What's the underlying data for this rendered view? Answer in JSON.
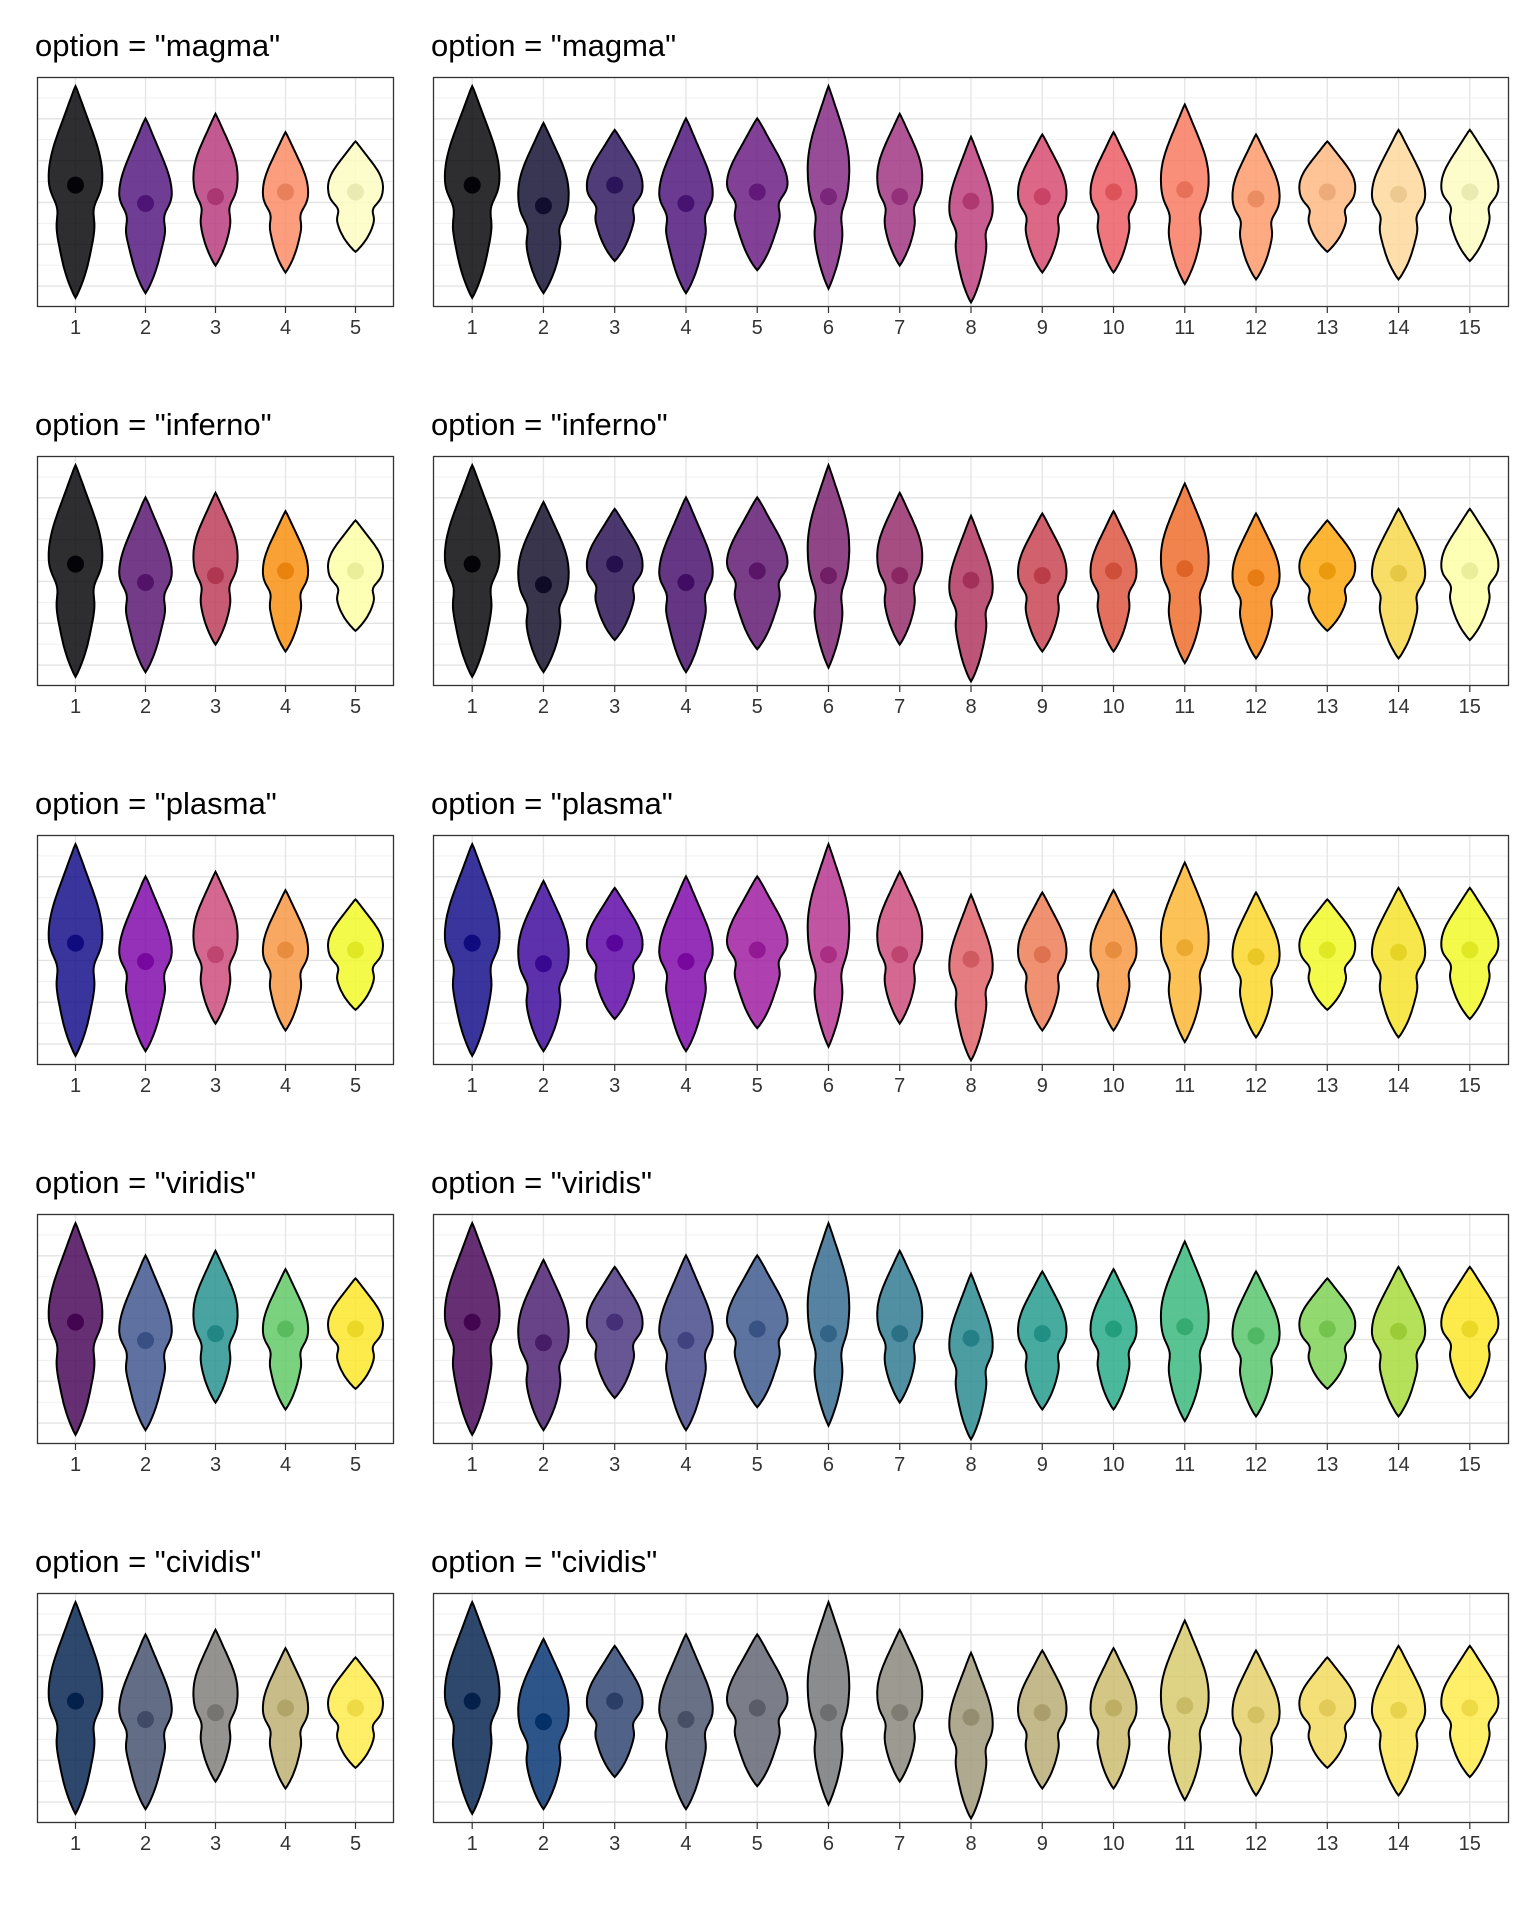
{
  "chart_data": [
    {
      "type": "violin",
      "title": "option = \"magma\"",
      "categories": [
        "1",
        "2",
        "3",
        "4",
        "5"
      ],
      "colors": [
        "#000004",
        "#51127C",
        "#B63679",
        "#FB8861",
        "#FCFDBF"
      ],
      "grid": true,
      "legend": "none"
    },
    {
      "type": "violin",
      "title": "option = \"magma\"",
      "categories": [
        "1",
        "2",
        "3",
        "4",
        "5",
        "6",
        "7",
        "8",
        "9",
        "10",
        "11",
        "12",
        "13",
        "14",
        "15"
      ],
      "colors": [
        "#000004",
        "#0D0A2E",
        "#2A115C",
        "#491078",
        "#67177F",
        "#812581",
        "#9E2F7F",
        "#BB3978",
        "#D6456C",
        "#EC585F",
        "#F8765C",
        "#FC9666",
        "#FEB77E",
        "#FED799",
        "#FCFDBF"
      ],
      "grid": true,
      "legend": "none"
    },
    {
      "type": "violin",
      "title": "option = \"inferno\"",
      "categories": [
        "1",
        "2",
        "3",
        "4",
        "5"
      ],
      "colors": [
        "#000004",
        "#56106E",
        "#BB3754",
        "#F98C0A",
        "#FCFFA4"
      ],
      "grid": true,
      "legend": "none"
    },
    {
      "type": "violin",
      "title": "option = \"inferno\"",
      "categories": [
        "1",
        "2",
        "3",
        "4",
        "5",
        "6",
        "7",
        "8",
        "9",
        "10",
        "11",
        "12",
        "13",
        "14",
        "15"
      ],
      "colors": [
        "#000004",
        "#0C0826",
        "#240C4F",
        "#420A68",
        "#5D126E",
        "#781C6D",
        "#932667",
        "#AE305C",
        "#C73E4C",
        "#DD513A",
        "#ED6925",
        "#F8850F",
        "#FCA50A",
        "#F6D645",
        "#FCFFA4"
      ],
      "grid": true,
      "legend": "none"
    },
    {
      "type": "violin",
      "title": "option = \"plasma\"",
      "categories": [
        "1",
        "2",
        "3",
        "4",
        "5"
      ],
      "colors": [
        "#0D0887",
        "#7E03A8",
        "#CC4778",
        "#F89540",
        "#F0F921"
      ],
      "grid": true,
      "legend": "none"
    },
    {
      "type": "violin",
      "title": "option = \"plasma\"",
      "categories": [
        "1",
        "2",
        "3",
        "4",
        "5",
        "6",
        "7",
        "8",
        "9",
        "10",
        "11",
        "12",
        "13",
        "14",
        "15"
      ],
      "colors": [
        "#0D0887",
        "#3A049A",
        "#5C01A6",
        "#7E03A8",
        "#9C179E",
        "#B52F8C",
        "#CC4778",
        "#DE5F65",
        "#ED7953",
        "#F89540",
        "#FDB42F",
        "#FBD524",
        "#F0F921",
        "#F7E225",
        "#F0F921"
      ],
      "grid": true,
      "legend": "none"
    },
    {
      "type": "violin",
      "title": "option = \"viridis\"",
      "categories": [
        "1",
        "2",
        "3",
        "4",
        "5"
      ],
      "colors": [
        "#440154",
        "#3B528B",
        "#21908C",
        "#5DC863",
        "#FDE725"
      ],
      "grid": true,
      "legend": "none"
    },
    {
      "type": "violin",
      "title": "option = \"viridis\"",
      "categories": [
        "1",
        "2",
        "3",
        "4",
        "5",
        "6",
        "7",
        "8",
        "9",
        "10",
        "11",
        "12",
        "13",
        "14",
        "15"
      ],
      "colors": [
        "#440154",
        "#481A6C",
        "#472F7D",
        "#414487",
        "#39568C",
        "#31688E",
        "#2A788E",
        "#23888E",
        "#1F988B",
        "#22A884",
        "#35B779",
        "#54C568",
        "#7AD151",
        "#A5DB36",
        "#FDE725"
      ],
      "grid": true,
      "legend": "none"
    },
    {
      "type": "violin",
      "title": "option = \"cividis\"",
      "categories": [
        "1",
        "2",
        "3",
        "4",
        "5"
      ],
      "colors": [
        "#00204D",
        "#414D6B",
        "#7C7B78",
        "#BCAF6F",
        "#FFEA46"
      ],
      "grid": true,
      "legend": "none"
    },
    {
      "type": "violin",
      "title": "option = \"cividis\"",
      "categories": [
        "1",
        "2",
        "3",
        "4",
        "5",
        "6",
        "7",
        "8",
        "9",
        "10",
        "11",
        "12",
        "13",
        "14",
        "15"
      ],
      "colors": [
        "#00204D",
        "#00306F",
        "#2A406C",
        "#48526B",
        "#5E626E",
        "#727374",
        "#878479",
        "#9E9677",
        "#B6A971",
        "#CBBA69",
        "#D7C86A",
        "#E4D065",
        "#F2D959",
        "#FAE34E",
        "#FFEA46"
      ],
      "grid": true,
      "legend": "none"
    }
  ]
}
